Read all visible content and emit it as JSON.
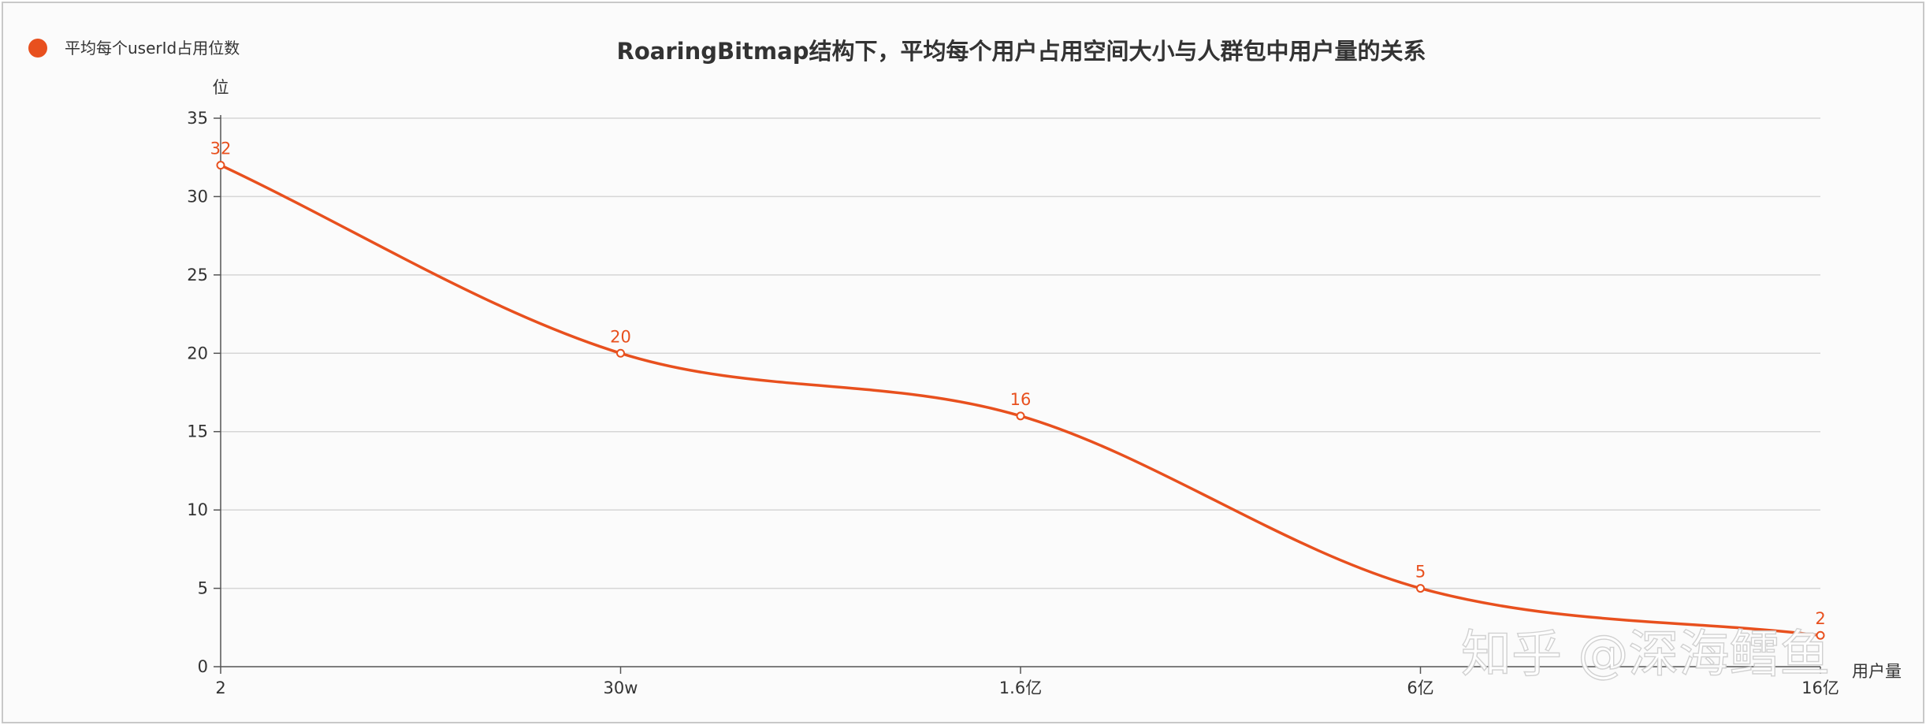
{
  "chart_data": {
    "type": "line",
    "title": "RoaringBitmap结构下，平均每个用户占用空间大小与人群包中用户量的关系",
    "xlabel": "用户量",
    "ylabel": "位",
    "categories": [
      "2",
      "30w",
      "1.6亿",
      "6亿",
      "16亿"
    ],
    "series": [
      {
        "name": "平均每个userId占用位数",
        "values": [
          32,
          20,
          16,
          5,
          2
        ]
      }
    ],
    "ylim": [
      0,
      35
    ],
    "yticks": [
      0,
      5,
      10,
      15,
      20,
      25,
      30,
      35
    ],
    "grid": true,
    "smooth": true,
    "data_labels": true,
    "legend_position": "top-left",
    "colors": {
      "series": "#e8501e",
      "grid": "#d6d6d6",
      "axis": "#555555",
      "text": "#333333"
    }
  },
  "watermark": "知乎 @深海鳕鱼"
}
